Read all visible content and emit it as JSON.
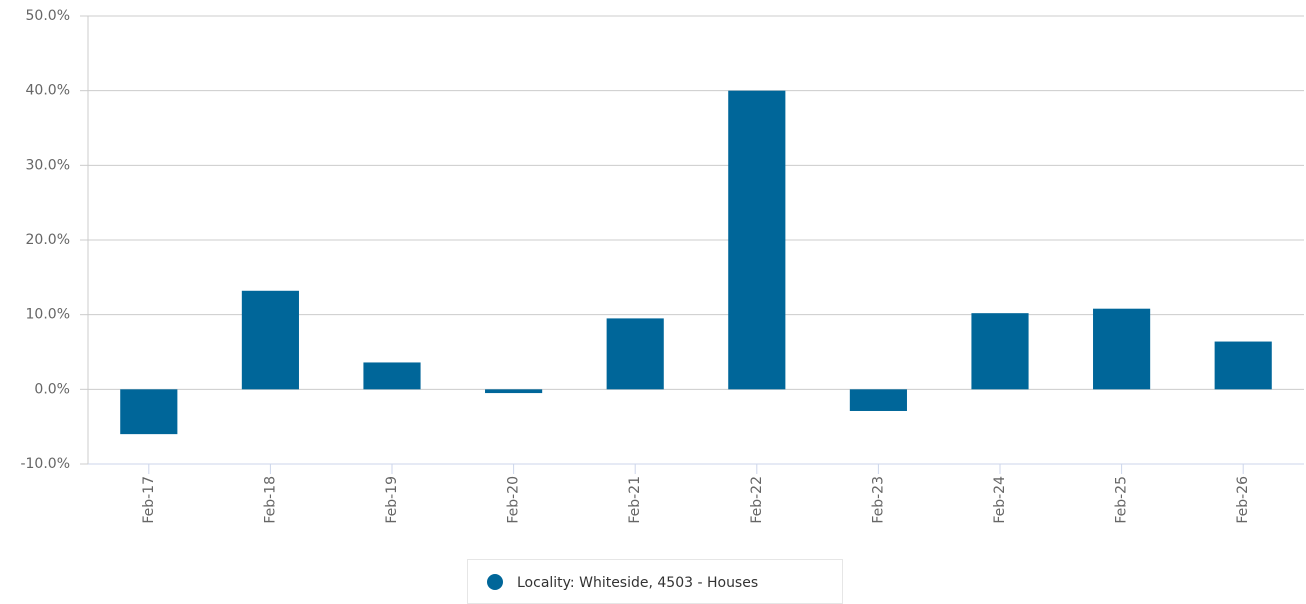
{
  "chart_data": {
    "type": "bar",
    "categories": [
      "Feb-17",
      "Feb-18",
      "Feb-19",
      "Feb-20",
      "Feb-21",
      "Feb-22",
      "Feb-23",
      "Feb-24",
      "Feb-25",
      "Feb-26"
    ],
    "series": [
      {
        "name": "Locality: Whiteside, 4503 - Houses",
        "color": "#006699",
        "values": [
          -6.0,
          13.2,
          3.6,
          -0.5,
          9.5,
          40.0,
          -2.9,
          10.2,
          10.8,
          6.4
        ]
      }
    ],
    "ylim": [
      -10,
      50
    ],
    "yticks": [
      {
        "value": -10,
        "label": "-10.0%"
      },
      {
        "value": 0,
        "label": "0.0%"
      },
      {
        "value": 10,
        "label": "10.0%"
      },
      {
        "value": 20,
        "label": "20.0%"
      },
      {
        "value": 30,
        "label": "30.0%"
      },
      {
        "value": 40,
        "label": "40.0%"
      },
      {
        "value": 50,
        "label": "50.0%"
      }
    ],
    "grid": true,
    "legend": "bottom"
  }
}
